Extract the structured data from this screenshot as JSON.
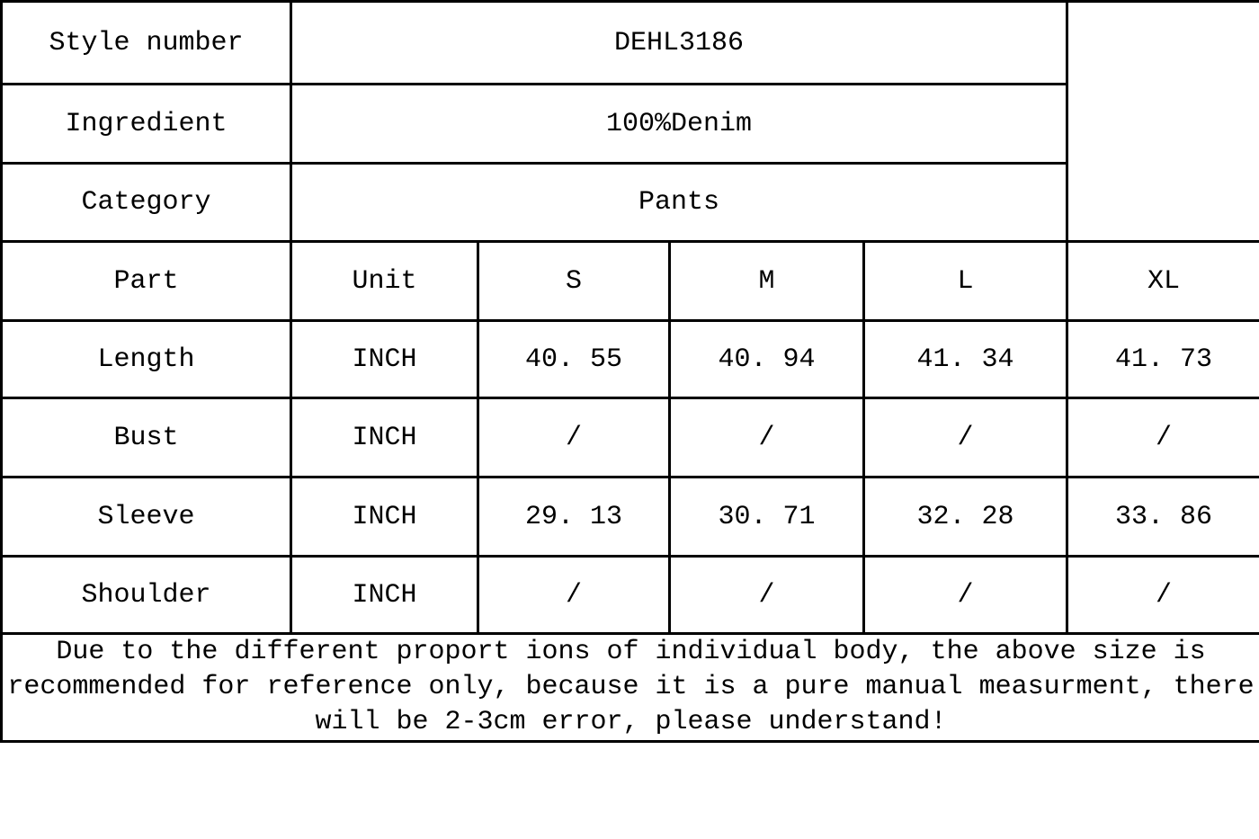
{
  "colors": {
    "border": "#000000",
    "text": "#000000",
    "background": "#ffffff"
  },
  "info_rows": [
    {
      "label": "Style number",
      "value": "DEHL3186"
    },
    {
      "label": "Ingredient",
      "value": "100%Denim"
    },
    {
      "label": "Category",
      "value": "Pants"
    }
  ],
  "size_table": {
    "header": [
      "Part",
      "Unit",
      "S",
      "M",
      "L",
      "XL"
    ],
    "rows": [
      {
        "part": "Length",
        "unit": "INCH",
        "values": [
          "40. 55",
          "40. 94",
          "41. 34",
          "41. 73"
        ]
      },
      {
        "part": "Bust",
        "unit": "INCH",
        "values": [
          "/",
          "/",
          "/",
          "/"
        ]
      },
      {
        "part": "Sleeve",
        "unit": "INCH",
        "values": [
          "29. 13",
          "30. 71",
          "32. 28",
          "33. 86"
        ]
      },
      {
        "part": "Shoulder",
        "unit": "INCH",
        "values": [
          "/",
          "/",
          "/",
          "/"
        ]
      }
    ]
  },
  "footnote": {
    "lines": [
      "Due to the different proport ions of individual body, the above size is",
      "recommended for reference only, because it is a pure manual measurment, there",
      "will be 2-3cm error, please understand!"
    ]
  }
}
